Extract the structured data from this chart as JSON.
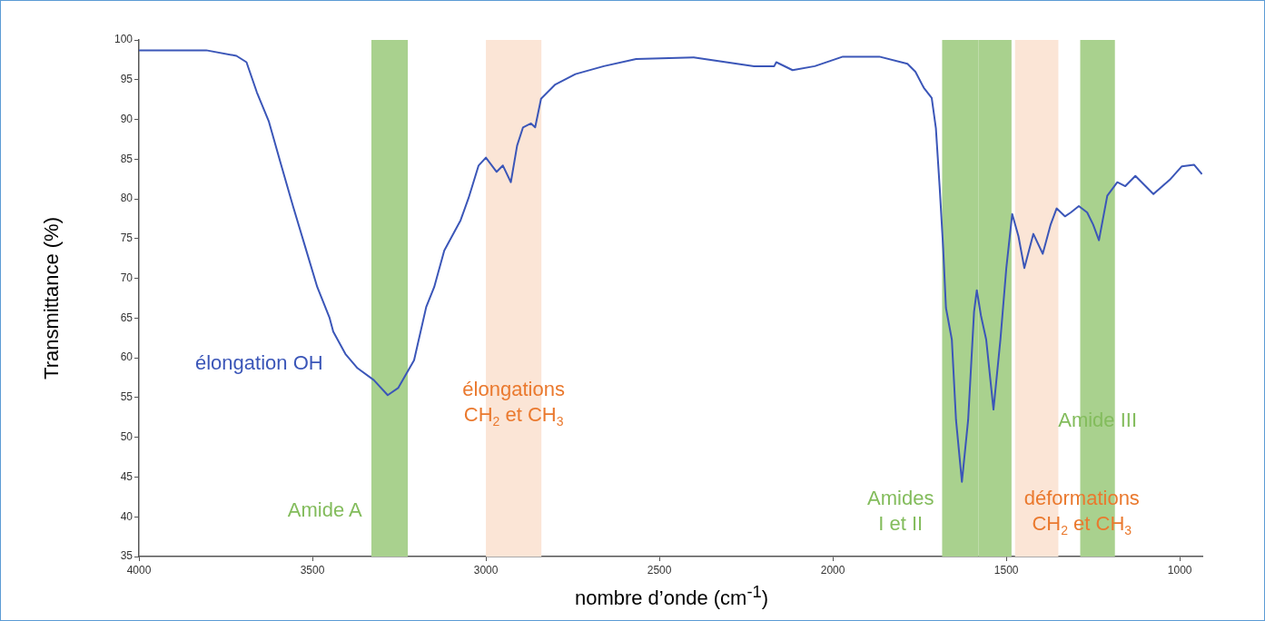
{
  "chart_data": {
    "type": "line",
    "xlabel": "nombre d’onde (cm$^{-1}$)",
    "ylabel": "Transmittance (%)",
    "x": [
      4000,
      3806,
      3719,
      3690,
      3660,
      3626,
      3591,
      3556,
      3521,
      3486,
      3451,
      3440,
      3405,
      3370,
      3323,
      3283,
      3253,
      3207,
      3172,
      3149,
      3120,
      3073,
      3050,
      3021,
      3000,
      2969,
      2951,
      2928,
      2910,
      2893,
      2870,
      2858,
      2841,
      2800,
      2742,
      2660,
      2567,
      2401,
      2227,
      2169,
      2163,
      2116,
      2052,
      1971,
      1866,
      1785,
      1762,
      1738,
      1715,
      1703,
      1692,
      1682,
      1674,
      1657,
      1645,
      1628,
      1610,
      1593,
      1585,
      1573,
      1558,
      1537,
      1517,
      1500,
      1483,
      1465,
      1448,
      1422,
      1395,
      1372,
      1355,
      1331,
      1314,
      1291,
      1267,
      1250,
      1233,
      1209,
      1180,
      1157,
      1128,
      1076,
      1029,
      994,
      959,
      936
    ],
    "series": [
      {
        "color": "#3b56b8",
        "values": [
          98.7,
          98.7,
          98.0,
          97.2,
          93.4,
          89.8,
          84.4,
          79.1,
          74.0,
          68.9,
          65.1,
          63.3,
          60.5,
          58.7,
          57.2,
          55.3,
          56.2,
          59.7,
          66.4,
          68.9,
          73.5,
          77.3,
          80.1,
          84.2,
          85.2,
          83.4,
          84.2,
          82.1,
          86.7,
          89.0,
          89.5,
          89.0,
          92.6,
          94.4,
          95.7,
          96.7,
          97.6,
          97.8,
          96.7,
          96.7,
          97.2,
          96.2,
          96.7,
          97.9,
          97.9,
          97.0,
          96.0,
          94.0,
          92.7,
          88.9,
          81.4,
          73.8,
          66.3,
          62.3,
          52.2,
          44.4,
          52.2,
          65.8,
          68.5,
          65.3,
          62.3,
          53.5,
          62.3,
          71.3,
          78.1,
          75.3,
          71.3,
          75.6,
          73.1,
          76.8,
          78.8,
          77.8,
          78.3,
          79.1,
          78.3,
          76.8,
          74.8,
          80.4,
          82.1,
          81.6,
          82.9,
          80.6,
          82.4,
          84.1,
          84.3,
          83.1
        ]
      }
    ],
    "xlim": [
      4000,
      935
    ],
    "xticks": [
      4000,
      3500,
      3000,
      2500,
      2000,
      1500,
      1000
    ],
    "ylim": [
      35,
      100
    ],
    "yticks": [
      35,
      40,
      45,
      50,
      55,
      60,
      65,
      70,
      75,
      80,
      85,
      90,
      95,
      100
    ],
    "bands": [
      {
        "axis": "x",
        "from": 3330,
        "to": 3225,
        "color": "#a9d18e",
        "label": "Amide A"
      },
      {
        "axis": "x",
        "from": 3000,
        "to": 2840,
        "color": "#fbe5d6",
        "label": "élongations\nCH$_{2}$ et CH$_{3}$"
      },
      {
        "axis": "x",
        "from": 1685,
        "to": 1580,
        "color": "#a9d18e",
        "label": "Amides\nI et II"
      },
      {
        "axis": "x",
        "from": 1580,
        "to": 1485,
        "color": "#a9d18e"
      },
      {
        "axis": "x",
        "from": 1475,
        "to": 1350,
        "color": "#fbe5d6",
        "label": "déformations\nCH$_{2}$ et CH$_{3}$"
      },
      {
        "axis": "x",
        "from": 1287,
        "to": 1187,
        "color": "#a9d18e",
        "label": "Amide III"
      }
    ],
    "annotations": [
      "élongation OH"
    ],
    "grid": false,
    "legend": false
  }
}
